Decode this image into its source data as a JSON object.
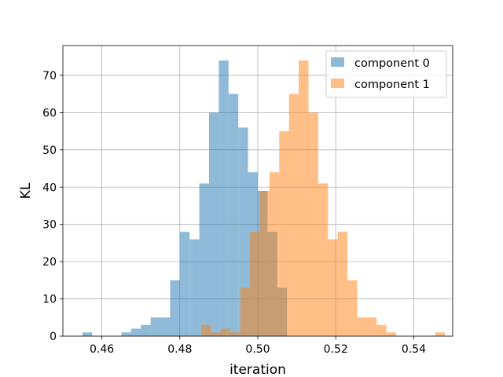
{
  "chart_data": {
    "type": "histogram",
    "xlabel": "iteration",
    "ylabel": "KL",
    "xlim": [
      0.45,
      0.55
    ],
    "ylim": [
      0,
      78
    ],
    "bin_width": 0.0025,
    "grid": true,
    "legend_position": "top-right",
    "xticks": [
      0.46,
      0.48,
      0.5,
      0.52,
      0.54
    ],
    "xtick_labels": [
      "0.46",
      "0.48",
      "0.50",
      "0.52",
      "0.54"
    ],
    "yticks": [
      0,
      10,
      20,
      30,
      40,
      50,
      60,
      70
    ],
    "ytick_labels": [
      "0",
      "10",
      "20",
      "30",
      "40",
      "50",
      "60",
      "70"
    ],
    "series": [
      {
        "name": "component 0",
        "color": "#1f77b4",
        "alpha": 0.5,
        "bin_starts": [
          0.455,
          0.465,
          0.4675,
          0.47,
          0.4725,
          0.475,
          0.4775,
          0.48,
          0.4825,
          0.485,
          0.4875,
          0.49,
          0.4925,
          0.495,
          0.4975,
          0.5,
          0.5025,
          0.505
        ],
        "values": [
          1,
          1,
          2,
          3,
          5,
          5,
          15,
          28,
          26,
          41,
          60,
          74,
          65,
          56,
          44,
          39,
          28,
          13
        ]
      },
      {
        "name": "component 1",
        "color": "#ff7f0e",
        "alpha": 0.5,
        "bin_starts": [
          0.4855,
          0.488,
          0.4905,
          0.493,
          0.4955,
          0.498,
          0.5005,
          0.503,
          0.5055,
          0.508,
          0.5105,
          0.513,
          0.5155,
          0.518,
          0.5205,
          0.523,
          0.5255,
          0.528,
          0.5305,
          0.533,
          0.5455
        ],
        "values": [
          3,
          1,
          2,
          1,
          13,
          28,
          39,
          44,
          55,
          65,
          74,
          60,
          41,
          26,
          28,
          15,
          5,
          5,
          3,
          1,
          1
        ]
      }
    ]
  }
}
